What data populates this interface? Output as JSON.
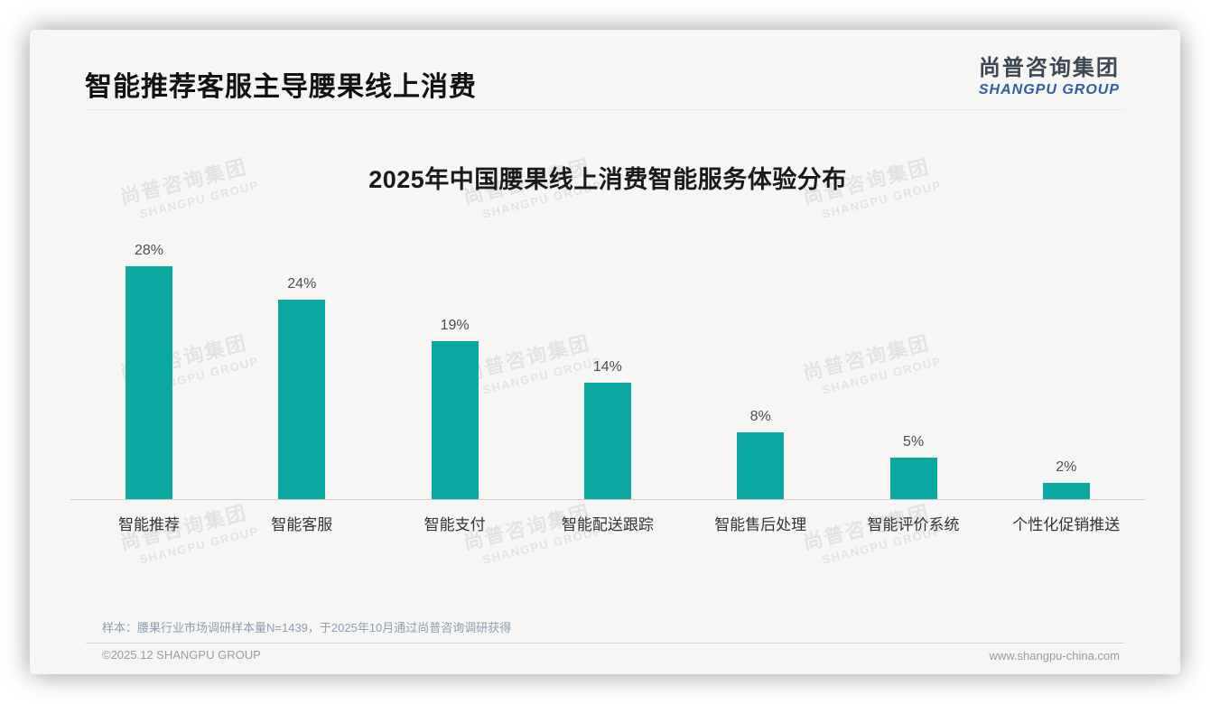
{
  "page": {
    "header": {
      "title": "智能推荐客服主导腰果线上消费"
    },
    "logo": {
      "cn": "尚普咨询集团",
      "en": "SHANGPU GROUP"
    },
    "watermark": {
      "cn": "尚普咨询集团",
      "en": "SHANGPU GROUP"
    },
    "note": "样本：腰果行业市场调研样本量N=1439，于2025年10月通过尚普咨询调研获得",
    "footer": {
      "left": "©2025.12 SHANGPU GROUP",
      "right": "www.shangpu-china.com"
    }
  },
  "colors": {
    "bar": "#0ba8a1",
    "card_bg": "#f6f6f5",
    "logo_cn": "#3d4754",
    "logo_en": "#2d5f9f",
    "note_text": "#8e9db3",
    "axis_line": "#cccccc"
  },
  "chart_data": {
    "type": "bar",
    "title": "2025年中国腰果线上消费智能服务体验分布",
    "categories": [
      "智能推荐",
      "智能客服",
      "智能支付",
      "智能配送跟踪",
      "智能售后处理",
      "智能评价系统",
      "个性化促销推送"
    ],
    "values": [
      28,
      24,
      19,
      14,
      8,
      5,
      2
    ],
    "data_labels": [
      "28%",
      "24%",
      "19%",
      "14%",
      "8%",
      "5%",
      "2%"
    ],
    "unit": "%",
    "xlabel": "",
    "ylabel": "",
    "ylim": [
      0,
      30
    ],
    "grid": false,
    "legend_position": "none",
    "bar_color": "#0ba8a1"
  }
}
